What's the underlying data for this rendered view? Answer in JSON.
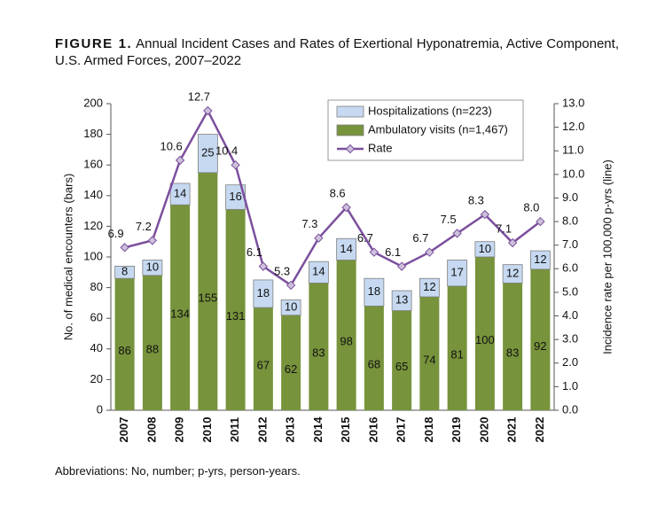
{
  "chart_data": {
    "type": "bar",
    "title_label": "FIGURE 1.",
    "title": "Annual Incident Cases and Rates of Exertional Hyponatremia, Active Component, U.S. Armed Forces, 2007–2022",
    "footnote": "Abbreviations: No, number; p-yrs, person-years.",
    "y_label": "No. of medical encounters (bars)",
    "y2_label": "Incidence rate per 100,000 p-yrs (line)",
    "categories": [
      "2007",
      "2008",
      "2009",
      "2010",
      "2011",
      "2012",
      "2013",
      "2014",
      "2015",
      "2016",
      "2017",
      "2018",
      "2019",
      "2020",
      "2021",
      "2022"
    ],
    "stacked": true,
    "series": [
      {
        "name": "Hospitalizations (n=223)",
        "color": "#c6d9f1",
        "values": [
          8,
          10,
          14,
          25,
          16,
          18,
          10,
          14,
          14,
          18,
          13,
          12,
          17,
          10,
          12,
          12
        ]
      },
      {
        "name": "Ambulatory visits (n=1,467)",
        "color": "#77933c",
        "values": [
          86,
          88,
          134,
          155,
          131,
          67,
          62,
          83,
          98,
          68,
          65,
          74,
          81,
          100,
          83,
          92
        ]
      },
      {
        "name": "Rate",
        "type": "line",
        "axis": "y2",
        "color": "#7b4f9d",
        "values": [
          6.9,
          7.2,
          10.6,
          12.7,
          10.4,
          6.1,
          5.3,
          7.3,
          8.6,
          6.7,
          6.1,
          6.7,
          7.5,
          8.3,
          7.1,
          8.0
        ],
        "value_labels": [
          "6.9",
          "7.2",
          "10.6",
          "12.7",
          "10.4",
          "6.1",
          "5.3",
          "7.3",
          "8.6",
          "6.7",
          "6.1",
          "6.7",
          "7.5",
          "8.3",
          "7.1",
          "8.0"
        ]
      }
    ],
    "ylim": [
      0,
      200
    ],
    "yticks": [
      0,
      20,
      40,
      60,
      80,
      100,
      120,
      140,
      160,
      180,
      200
    ],
    "y2lim": [
      0,
      13
    ],
    "y2ticks": [
      {
        "value": 0,
        "label": "0.0"
      },
      {
        "value": 1,
        "label": "1.0"
      },
      {
        "value": 2,
        "label": "2.0"
      },
      {
        "value": 3,
        "label": "3.0"
      },
      {
        "value": 4,
        "label": "4.0"
      },
      {
        "value": 5,
        "label": "5.0"
      },
      {
        "value": 6,
        "label": "6.0"
      },
      {
        "value": 7,
        "label": "7.0"
      },
      {
        "value": 8,
        "label": "8.0"
      },
      {
        "value": 9,
        "label": "9.0"
      },
      {
        "value": 10,
        "label": "10.0"
      },
      {
        "value": 11,
        "label": "11.0"
      },
      {
        "value": 12,
        "label": "12.0"
      },
      {
        "value": 13,
        "label": "13.0"
      }
    ],
    "legend": "top-right"
  }
}
